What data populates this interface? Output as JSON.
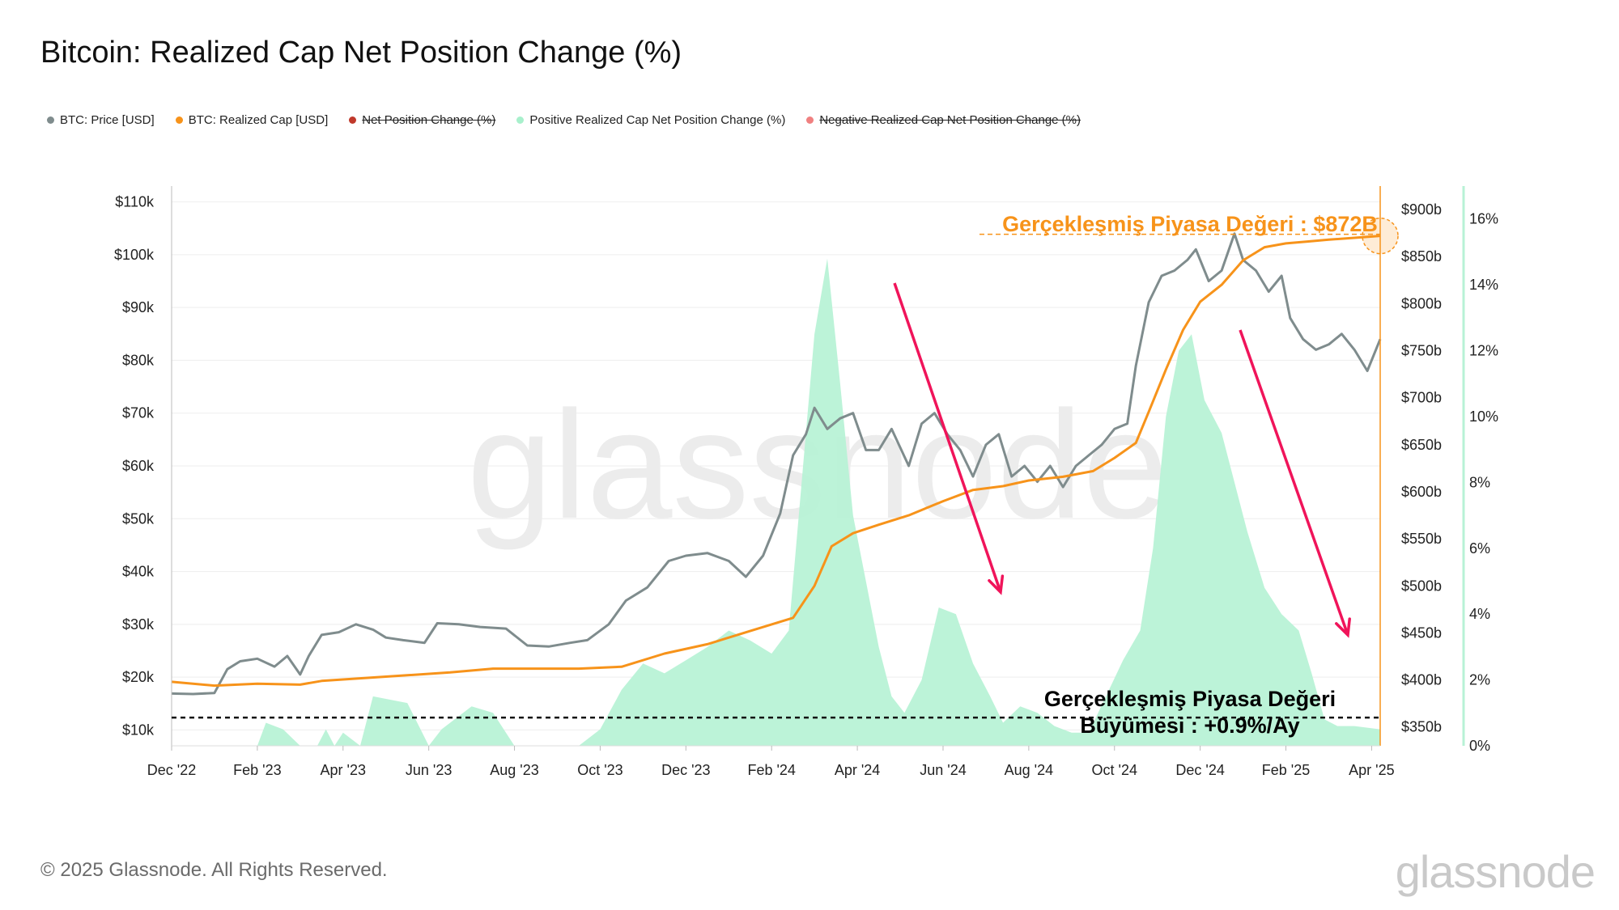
{
  "title": "Bitcoin: Realized Cap Net Position Change (%)",
  "legend": [
    {
      "label": "BTC: Price [USD]",
      "color": "#7f8c8d",
      "struck": false
    },
    {
      "label": "BTC: Realized Cap [USD]",
      "color": "#f7931a",
      "struck": false
    },
    {
      "label": "Net Position Change (%)",
      "color": "#c0392b",
      "struck": true
    },
    {
      "label": "Positive Realized Cap Net Position Change (%)",
      "color": "#a8f0cc",
      "struck": false
    },
    {
      "label": "Negative Realized Cap Net Position Change (%)",
      "color": "#f08080",
      "struck": true
    }
  ],
  "footer": {
    "copyright": "© 2025 Glassnode. All Rights Reserved.",
    "brand": "glassnode"
  },
  "watermark": "glassnode",
  "colors": {
    "price": "#7f8c8d",
    "realized": "#f7931a",
    "area": "#b8f2d6",
    "arrow": "#f0145a",
    "grid": "#eeeeee"
  },
  "chart_data": {
    "type": "line",
    "title": "Bitcoin: Realized Cap Net Position Change (%)",
    "x_ticks": [
      "Dec '22",
      "Feb '23",
      "Apr '23",
      "Jun '23",
      "Aug '23",
      "Oct '23",
      "Dec '23",
      "Feb '24",
      "Apr '24",
      "Jun '24",
      "Aug '24",
      "Oct '24",
      "Dec '24",
      "Feb '25",
      "Apr '25"
    ],
    "x_range_months": [
      0,
      28.2
    ],
    "y_left": {
      "ticks": [
        "$10k",
        "$20k",
        "$30k",
        "$40k",
        "$50k",
        "$60k",
        "$70k",
        "$80k",
        "$90k",
        "$100k",
        "$110k"
      ],
      "values": [
        10000,
        20000,
        30000,
        40000,
        50000,
        60000,
        70000,
        80000,
        90000,
        100000,
        110000
      ],
      "range": [
        7000,
        113000
      ]
    },
    "y_mid": {
      "ticks": [
        "$350b",
        "$400b",
        "$450b",
        "$500b",
        "$550b",
        "$600b",
        "$650b",
        "$700b",
        "$750b",
        "$800b",
        "$850b",
        "$900b"
      ],
      "values": [
        350,
        400,
        450,
        500,
        550,
        600,
        650,
        700,
        750,
        800,
        850,
        900
      ],
      "range": [
        330,
        925
      ]
    },
    "y_right": {
      "ticks": [
        "0%",
        "2%",
        "4%",
        "6%",
        "8%",
        "10%",
        "12%",
        "14%",
        "16%"
      ],
      "values": [
        0,
        2,
        4,
        6,
        8,
        10,
        12,
        14,
        16
      ],
      "range": [
        0,
        17
      ]
    },
    "series": [
      {
        "name": "BTC: Price [USD]",
        "axis": "left",
        "points": [
          [
            0,
            16900
          ],
          [
            0.5,
            16800
          ],
          [
            1.0,
            17000
          ],
          [
            1.3,
            21500
          ],
          [
            1.6,
            23000
          ],
          [
            2.0,
            23500
          ],
          [
            2.4,
            22000
          ],
          [
            2.7,
            24000
          ],
          [
            3.0,
            20500
          ],
          [
            3.2,
            24000
          ],
          [
            3.5,
            28000
          ],
          [
            3.9,
            28500
          ],
          [
            4.3,
            30000
          ],
          [
            4.7,
            29000
          ],
          [
            5.0,
            27500
          ],
          [
            5.4,
            27000
          ],
          [
            5.9,
            26500
          ],
          [
            6.2,
            30200
          ],
          [
            6.7,
            30000
          ],
          [
            7.2,
            29500
          ],
          [
            7.8,
            29200
          ],
          [
            8.3,
            26000
          ],
          [
            8.8,
            25800
          ],
          [
            9.3,
            26500
          ],
          [
            9.7,
            27000
          ],
          [
            10.2,
            30000
          ],
          [
            10.6,
            34500
          ],
          [
            11.1,
            37000
          ],
          [
            11.6,
            42000
          ],
          [
            12.0,
            43000
          ],
          [
            12.5,
            43500
          ],
          [
            13.0,
            42000
          ],
          [
            13.4,
            39000
          ],
          [
            13.8,
            43000
          ],
          [
            14.2,
            51000
          ],
          [
            14.5,
            62000
          ],
          [
            14.8,
            66000
          ],
          [
            15.0,
            71000
          ],
          [
            15.3,
            67000
          ],
          [
            15.6,
            69000
          ],
          [
            15.9,
            70000
          ],
          [
            16.2,
            63000
          ],
          [
            16.5,
            63000
          ],
          [
            16.8,
            67000
          ],
          [
            17.2,
            60000
          ],
          [
            17.5,
            68000
          ],
          [
            17.8,
            70000
          ],
          [
            18.1,
            66000
          ],
          [
            18.4,
            63000
          ],
          [
            18.7,
            58000
          ],
          [
            19.0,
            64000
          ],
          [
            19.3,
            66000
          ],
          [
            19.6,
            58000
          ],
          [
            19.9,
            60000
          ],
          [
            20.2,
            57000
          ],
          [
            20.5,
            60000
          ],
          [
            20.8,
            56000
          ],
          [
            21.1,
            60000
          ],
          [
            21.4,
            62000
          ],
          [
            21.7,
            64000
          ],
          [
            22.0,
            67000
          ],
          [
            22.3,
            68000
          ],
          [
            22.5,
            79000
          ],
          [
            22.8,
            91000
          ],
          [
            23.1,
            96000
          ],
          [
            23.4,
            97000
          ],
          [
            23.7,
            99000
          ],
          [
            23.9,
            101000
          ],
          [
            24.2,
            95000
          ],
          [
            24.5,
            97000
          ],
          [
            24.8,
            104000
          ],
          [
            25.0,
            99000
          ],
          [
            25.3,
            97000
          ],
          [
            25.6,
            93000
          ],
          [
            25.9,
            96000
          ],
          [
            26.1,
            88000
          ],
          [
            26.4,
            84000
          ],
          [
            26.7,
            82000
          ],
          [
            27.0,
            83000
          ],
          [
            27.3,
            85000
          ],
          [
            27.6,
            82000
          ],
          [
            27.9,
            78000
          ],
          [
            28.2,
            84000
          ]
        ]
      },
      {
        "name": "BTC: Realized Cap [USD]",
        "axis": "mid",
        "points": [
          [
            0,
            398
          ],
          [
            1.0,
            394
          ],
          [
            2.0,
            396
          ],
          [
            3.0,
            395
          ],
          [
            3.5,
            399
          ],
          [
            4.5,
            402
          ],
          [
            5.5,
            405
          ],
          [
            6.5,
            408
          ],
          [
            7.5,
            412
          ],
          [
            8.5,
            412
          ],
          [
            9.5,
            412
          ],
          [
            10.5,
            414
          ],
          [
            11.5,
            428
          ],
          [
            12.5,
            438
          ],
          [
            13.5,
            452
          ],
          [
            14.5,
            466
          ],
          [
            15.0,
            500
          ],
          [
            15.4,
            542
          ],
          [
            15.9,
            556
          ],
          [
            16.5,
            565
          ],
          [
            17.2,
            575
          ],
          [
            18.0,
            590
          ],
          [
            18.7,
            602
          ],
          [
            19.4,
            606
          ],
          [
            20.0,
            612
          ],
          [
            20.8,
            616
          ],
          [
            21.5,
            622
          ],
          [
            22.0,
            636
          ],
          [
            22.5,
            652
          ],
          [
            22.8,
            685
          ],
          [
            23.2,
            730
          ],
          [
            23.6,
            772
          ],
          [
            24.0,
            802
          ],
          [
            24.5,
            820
          ],
          [
            25.0,
            846
          ],
          [
            25.5,
            860
          ],
          [
            26.0,
            864
          ],
          [
            26.5,
            866
          ],
          [
            27.0,
            868
          ],
          [
            27.6,
            870
          ],
          [
            28.2,
            872
          ]
        ]
      },
      {
        "name": "Positive Realized Cap Net Position Change (%)",
        "axis": "right",
        "type": "area",
        "points": [
          [
            0,
            0
          ],
          [
            2.0,
            0
          ],
          [
            2.2,
            0.7
          ],
          [
            2.6,
            0.5
          ],
          [
            3.0,
            0
          ],
          [
            3.4,
            0
          ],
          [
            3.6,
            0.5
          ],
          [
            3.8,
            0
          ],
          [
            4.0,
            0.4
          ],
          [
            4.4,
            0
          ],
          [
            4.7,
            1.5
          ],
          [
            5.5,
            1.3
          ],
          [
            6.0,
            0
          ],
          [
            6.3,
            0.5
          ],
          [
            7.0,
            1.2
          ],
          [
            7.5,
            1.0
          ],
          [
            8.0,
            0
          ],
          [
            9.5,
            0
          ],
          [
            10.0,
            0.5
          ],
          [
            10.5,
            1.7
          ],
          [
            11.0,
            2.5
          ],
          [
            11.5,
            2.2
          ],
          [
            12.0,
            2.6
          ],
          [
            12.5,
            3.0
          ],
          [
            13.0,
            3.5
          ],
          [
            13.5,
            3.2
          ],
          [
            14.0,
            2.8
          ],
          [
            14.4,
            3.5
          ],
          [
            14.7,
            8.0
          ],
          [
            15.0,
            12.5
          ],
          [
            15.3,
            14.8
          ],
          [
            15.6,
            11.0
          ],
          [
            15.9,
            7.0
          ],
          [
            16.2,
            5.0
          ],
          [
            16.5,
            3.0
          ],
          [
            16.8,
            1.5
          ],
          [
            17.1,
            1.0
          ],
          [
            17.5,
            2.0
          ],
          [
            17.9,
            4.2
          ],
          [
            18.3,
            4.0
          ],
          [
            18.7,
            2.5
          ],
          [
            19.1,
            1.5
          ],
          [
            19.4,
            0.7
          ],
          [
            19.8,
            1.2
          ],
          [
            20.2,
            1.0
          ],
          [
            20.6,
            0.6
          ],
          [
            21.0,
            0.4
          ],
          [
            21.4,
            0.4
          ],
          [
            21.8,
            1.5
          ],
          [
            22.2,
            2.6
          ],
          [
            22.6,
            3.5
          ],
          [
            22.9,
            6.0
          ],
          [
            23.2,
            10.0
          ],
          [
            23.5,
            12.0
          ],
          [
            23.8,
            12.5
          ],
          [
            24.1,
            10.5
          ],
          [
            24.5,
            9.5
          ],
          [
            24.8,
            8.0
          ],
          [
            25.1,
            6.5
          ],
          [
            25.5,
            4.8
          ],
          [
            25.9,
            4.0
          ],
          [
            26.3,
            3.5
          ],
          [
            26.6,
            2.2
          ],
          [
            26.9,
            0.8
          ],
          [
            27.2,
            0.6
          ],
          [
            27.6,
            0.6
          ],
          [
            28.2,
            0.5
          ],
          [
            28.2,
            0
          ]
        ]
      }
    ],
    "annotations": [
      {
        "text": "Gerçekleşmiş Piyasa Değeri : $872B",
        "color": "#f7931a"
      },
      {
        "text": "Gerçekleşmiş Piyasa Değeri",
        "color": "#000000"
      },
      {
        "text": "Büyümesi : +0.9%/Ay",
        "color": "#000000"
      }
    ],
    "reference_line": {
      "axis": "mid",
      "value": 360,
      "style": "dashed"
    }
  }
}
